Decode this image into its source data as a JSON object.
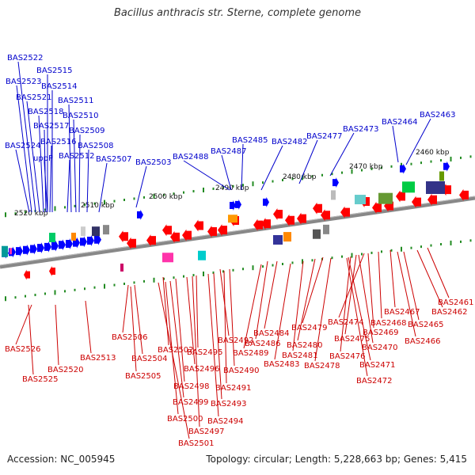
{
  "title": "Bacillus anthracis str. Sterne, complete genome",
  "accession": "Accession: NC_005945",
  "summary": "Topology: circular; Length: 5,228,663 bp; Genes: 5,415",
  "colors": {
    "forward": "#0000ff",
    "reverse": "#ff0000",
    "forward_label": "#0000cc",
    "reverse_label": "#cc0000",
    "backbone": "#888888",
    "tick": "#228b22"
  },
  "scale_labels": [
    "2520 kbp",
    "2510 kbp",
    "2500 kbp",
    "2490 kbp",
    "2480 kbp",
    "2470 kbp",
    "2460 kbp"
  ],
  "forward_genes": [
    "BAS2522",
    "BAS2515",
    "BAS2523",
    "BAS2514",
    "BAS2521",
    "BAS2511",
    "BAS2518",
    "BAS2510",
    "BAS2517",
    "BAS2509",
    "BAS2524",
    "BAS2516",
    "BAS2508",
    "uppP",
    "BAS2512",
    "BAS2507",
    "BAS2503",
    "BAS2488",
    "BAS2487",
    "BAS2485",
    "BAS2482",
    "BAS2477",
    "BAS2473",
    "BAS2464",
    "BAS2463"
  ],
  "reverse_genes": [
    "BAS2461",
    "BAS2462",
    "BAS2467",
    "BAS2465",
    "BAS2468",
    "BAS2474",
    "BAS2469",
    "BAS2466",
    "BAS2479",
    "BAS2475",
    "BAS2470",
    "BAS2484",
    "BAS2486",
    "BAS2480",
    "BAS2476",
    "BAS2492",
    "BAS2489",
    "BAS2481",
    "BAS2478",
    "BAS2471",
    "BAS2483",
    "BAS2506",
    "BAS2502",
    "BAS2495",
    "BAS2472",
    "BAS2504",
    "BAS2496",
    "BAS2490",
    "BAS2505",
    "BAS2498",
    "BAS2491",
    "BAS2499",
    "BAS2493",
    "BAS2500",
    "BAS2494",
    "BAS2497",
    "BAS2501",
    "BAS2526",
    "BAS2520",
    "BAS2525",
    "BAS2513"
  ]
}
